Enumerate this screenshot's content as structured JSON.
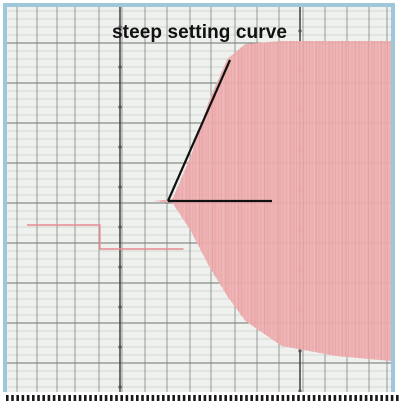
{
  "chart_data": {
    "type": "line",
    "title": "",
    "xlabel": "",
    "ylabel": "",
    "grid": true,
    "annotations": [
      {
        "text": "steep setting curve"
      }
    ],
    "series": [
      {
        "kind": "setpoint_step",
        "x": [
          0.0,
          0.2,
          0.2,
          0.43
        ],
        "y": [
          0.0,
          0.0,
          -0.24,
          -0.24
        ]
      },
      {
        "kind": "oscillation_envelope_upper",
        "x": [
          0.35,
          0.4,
          0.45,
          0.5,
          0.55,
          0.6,
          0.7,
          0.85,
          1.0
        ],
        "y": [
          0.0,
          0.02,
          0.45,
          1.0,
          1.42,
          1.57,
          1.6,
          1.6,
          1.6
        ]
      },
      {
        "kind": "oscillation_envelope_lower",
        "x": [
          0.35,
          0.4,
          0.45,
          0.5,
          0.55,
          0.6,
          0.7,
          0.85,
          1.0
        ],
        "y": [
          0.0,
          -0.02,
          -0.3,
          -0.65,
          -0.95,
          -1.2,
          -1.45,
          -1.55,
          -1.6
        ]
      }
    ],
    "colors": {
      "trace": "#e58a8d",
      "trace_light": "#f2c3c3",
      "grid_major": "#4a4a4a",
      "grid_minor": "#b9bcb9",
      "paper": "#eef1ee",
      "pointer_line": "#111111",
      "border": "#9fc7da"
    }
  }
}
